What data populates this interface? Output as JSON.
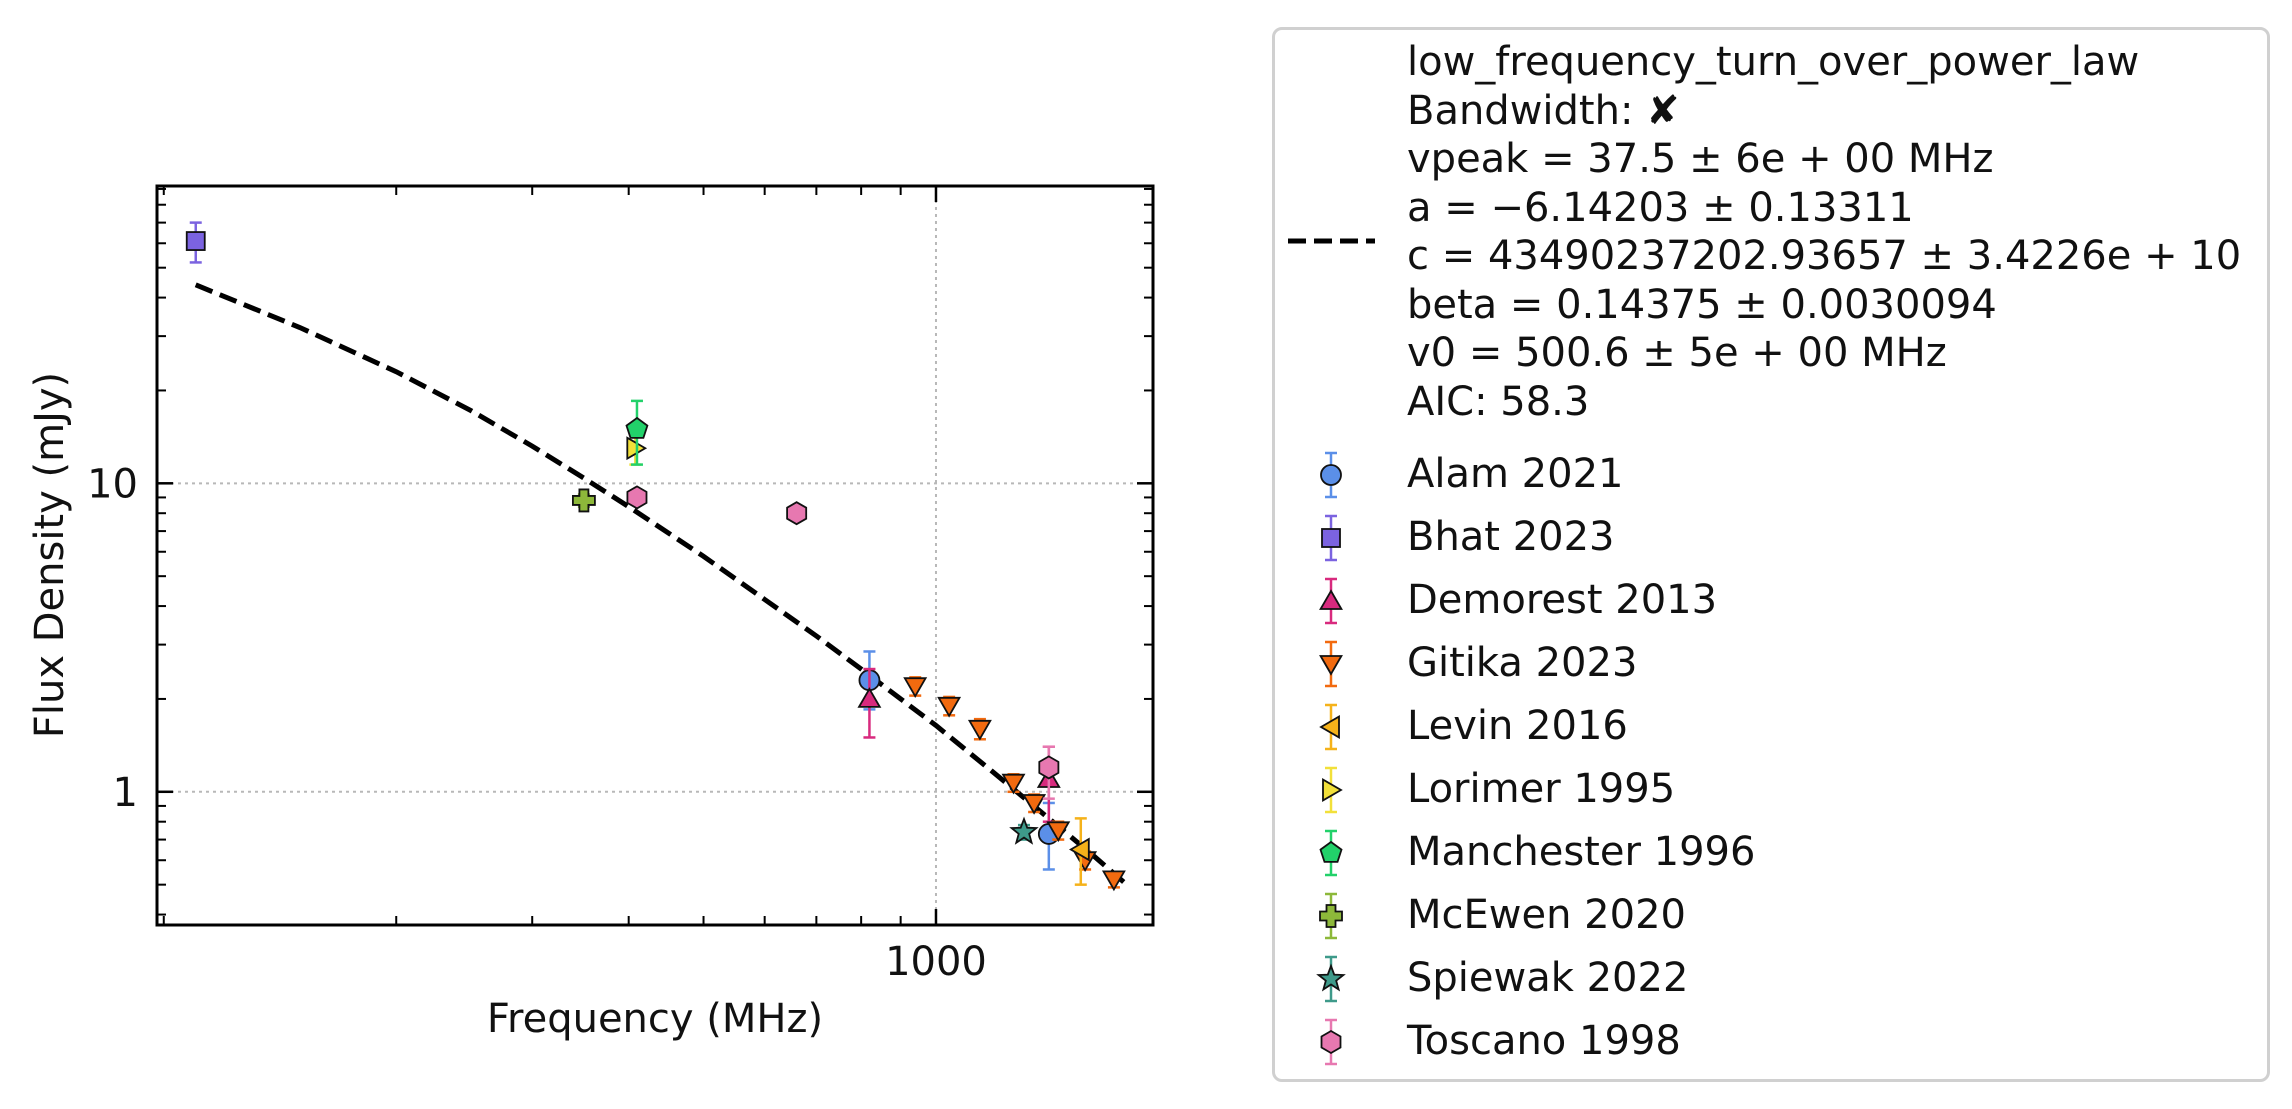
{
  "chart_data": {
    "type": "scatter",
    "xlabel": "Frequency (MHz)",
    "ylabel": "Flux Density (mJy)",
    "x_scale": "log",
    "y_scale": "log",
    "xlim": [
      98,
      1910
    ],
    "ylim": [
      0.37,
      92
    ],
    "x_ticklabels": [
      "1000"
    ],
    "y_ticklabels": [
      "1",
      "10"
    ],
    "grid": true,
    "legend_placement": "outside-right",
    "fit": {
      "name": "low_frequency_turn_over_power_law",
      "lines": [
        "low_frequency_turn_over_power_law",
        "Bandwidth: ✘",
        "vpeak = 37.5 ± 6e + 00 MHz",
        "a = −6.14203 ± 0.13311",
        "c = 43490237202.93657 ± 3.4226e + 10",
        "beta = 0.14375 ± 0.0030094",
        "v0 = 500.6 ± 5e + 00 MHz",
        "AIC: 58.3"
      ],
      "curve": [
        [
          110,
          44.0
        ],
        [
          150,
          32.0
        ],
        [
          200,
          23.0
        ],
        [
          250,
          17.2
        ],
        [
          300,
          13.2
        ],
        [
          350,
          10.4
        ],
        [
          400,
          8.4
        ],
        [
          500,
          5.8
        ],
        [
          600,
          4.2
        ],
        [
          700,
          3.2
        ],
        [
          800,
          2.5
        ],
        [
          900,
          2.0
        ],
        [
          1000,
          1.64
        ],
        [
          1200,
          1.13
        ],
        [
          1400,
          0.82
        ],
        [
          1600,
          0.62
        ],
        [
          1750,
          0.51
        ]
      ],
      "color": "#000000"
    },
    "series": [
      {
        "name": "Alam 2021",
        "marker": "circle",
        "color": "#5B8FE8",
        "points": [
          {
            "x": 820,
            "y": 2.3,
            "ylo": 1.85,
            "yhi": 2.85
          },
          {
            "x": 1400,
            "y": 0.73,
            "ylo": 0.56,
            "yhi": 0.92
          }
        ]
      },
      {
        "name": "Bhat 2023",
        "marker": "square",
        "color": "#7B63E0",
        "points": [
          {
            "x": 110,
            "y": 61,
            "ylo": 52,
            "yhi": 70
          }
        ]
      },
      {
        "name": "Demorest 2013",
        "marker": "triangle-up",
        "color": "#D82A7E",
        "points": [
          {
            "x": 820,
            "y": 2.0,
            "ylo": 1.5,
            "yhi": 2.5
          },
          {
            "x": 1400,
            "y": 1.1,
            "ylo": 0.8,
            "yhi": 1.4
          }
        ]
      },
      {
        "name": "Gitika 2023",
        "marker": "triangle-down",
        "color": "#F26A0F",
        "points": [
          {
            "x": 940,
            "y": 2.2,
            "ylo": 2.05,
            "yhi": 2.35
          },
          {
            "x": 1040,
            "y": 1.9,
            "ylo": 1.77,
            "yhi": 2.03
          },
          {
            "x": 1140,
            "y": 1.6,
            "ylo": 1.48,
            "yhi": 1.72
          },
          {
            "x": 1260,
            "y": 1.07,
            "ylo": 1.0,
            "yhi": 1.14
          },
          {
            "x": 1340,
            "y": 0.92,
            "ylo": 0.86,
            "yhi": 0.98
          },
          {
            "x": 1440,
            "y": 0.75,
            "ylo": 0.7,
            "yhi": 0.8
          },
          {
            "x": 1560,
            "y": 0.6,
            "ylo": 0.56,
            "yhi": 0.64
          },
          {
            "x": 1700,
            "y": 0.52,
            "ylo": 0.49,
            "yhi": 0.55
          }
        ]
      },
      {
        "name": "Levin 2016",
        "marker": "triangle-left",
        "color": "#F5B21A",
        "points": [
          {
            "x": 1540,
            "y": 0.65,
            "ylo": 0.5,
            "yhi": 0.82
          }
        ]
      },
      {
        "name": "Lorimer 1995",
        "marker": "triangle-right",
        "color": "#F2E03A",
        "points": [
          {
            "x": 408,
            "y": 13,
            "ylo": 11.5,
            "yhi": 14.5
          }
        ]
      },
      {
        "name": "Manchester 1996",
        "marker": "pentagon",
        "color": "#22D16A",
        "points": [
          {
            "x": 410,
            "y": 15,
            "ylo": 11.5,
            "yhi": 18.5
          }
        ]
      },
      {
        "name": "McEwen 2020",
        "marker": "plus",
        "color": "#8DB83A",
        "points": [
          {
            "x": 350,
            "y": 8.8,
            "ylo": 8.4,
            "yhi": 9.2
          }
        ]
      },
      {
        "name": "Spiewak 2022",
        "marker": "star",
        "color": "#3E9A8A",
        "points": [
          {
            "x": 1300,
            "y": 0.74,
            "ylo": 0.7,
            "yhi": 0.78
          }
        ]
      },
      {
        "name": "Toscano 1998",
        "marker": "hexagon",
        "color": "#E778B0",
        "points": [
          {
            "x": 410,
            "y": 9.0,
            "ylo": 8.6,
            "yhi": 9.4
          },
          {
            "x": 660,
            "y": 8.0,
            "ylo": 7.7,
            "yhi": 8.3
          },
          {
            "x": 1400,
            "y": 1.2,
            "ylo": 0.95,
            "yhi": 1.4
          }
        ]
      }
    ]
  }
}
